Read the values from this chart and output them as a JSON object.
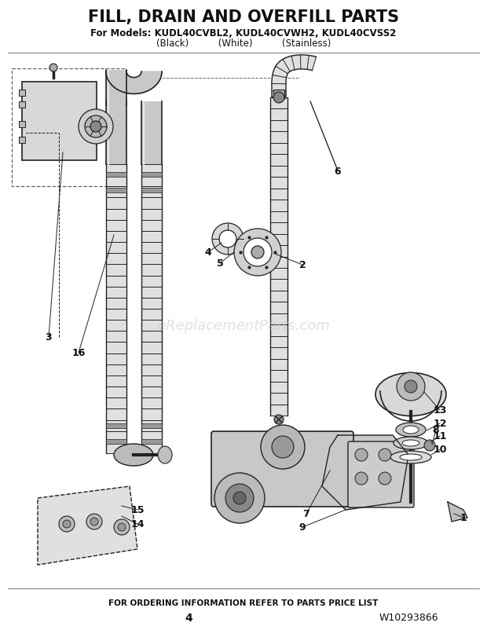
{
  "title": "FILL, DRAIN AND OVERFILL PARTS",
  "subtitle": "For Models: KUDL40CVBL2, KUDL40CVWH2, KUDL40CVSS2",
  "subtitle2": "(Black)          (White)          (Stainless)",
  "footer": "FOR ORDERING INFORMATION REFER TO PARTS PRICE LIST",
  "page_number": "4",
  "part_number": "W10293866",
  "bg_color": "#ffffff",
  "text_color": "#111111",
  "line_color": "#222222",
  "gray_light": "#d8d8d8",
  "gray_mid": "#aaaaaa",
  "gray_dark": "#666666",
  "watermark": "eReplacementParts.com",
  "watermark_color": "#cccccc",
  "fig_width": 6.2,
  "fig_height": 8.03,
  "dpi": 100
}
